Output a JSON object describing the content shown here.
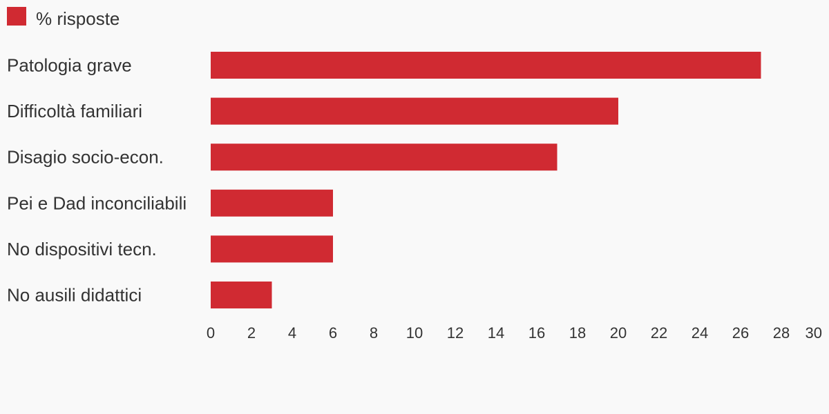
{
  "chart_data": {
    "type": "bar",
    "orientation": "horizontal",
    "series": [
      {
        "name": "% risposte",
        "color": "#d02a32",
        "values": [
          27,
          20,
          17,
          6,
          6,
          3
        ]
      }
    ],
    "categories": [
      "Patologia grave",
      "Difficoltà familiari",
      "Disagio socio-econ.",
      "Pei e Dad inconciliabili",
      "No dispositivi tecn.",
      "No ausili didattici"
    ],
    "xlim": [
      0,
      30
    ],
    "xticks": [
      "0",
      "2",
      "4",
      "6",
      "8",
      "10",
      "12",
      "14",
      "16",
      "18",
      "20",
      "22",
      "24",
      "26",
      "28",
      "30"
    ],
    "grid": false,
    "legend_position": "top-left"
  }
}
